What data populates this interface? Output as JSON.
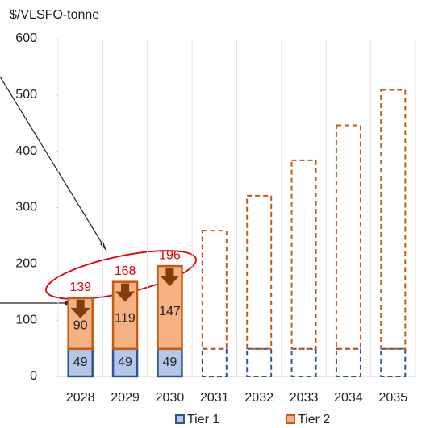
{
  "chart_data": {
    "type": "stacked_bar",
    "y_axis_label": "$/VLSFO-tonne",
    "categories": [
      "2028",
      "2029",
      "2030",
      "2031",
      "2032",
      "2033",
      "2034",
      "2035"
    ],
    "series": [
      {
        "name": "Tier 1",
        "color": "#b4c7e7",
        "edge": "#2f5597",
        "values": [
          49,
          49,
          49,
          49,
          49,
          49,
          49,
          49
        ],
        "value_labels": [
          "49",
          "49",
          "49",
          null,
          null,
          null,
          null,
          null
        ],
        "styles": [
          "solid",
          "solid",
          "solid",
          "dashed",
          "dashed",
          "dashed",
          "dashed",
          "dashed"
        ]
      },
      {
        "name": "Tier 2",
        "color": "#f4b183",
        "edge": "#c55a11",
        "values": [
          90,
          119,
          147,
          210,
          272,
          335,
          397,
          460
        ],
        "value_labels": [
          "90",
          "119",
          "147",
          null,
          null,
          null,
          null,
          null
        ],
        "styles": [
          "solid",
          "solid",
          "solid",
          "dashed",
          "dashed",
          "dashed",
          "dashed",
          "dashed"
        ]
      }
    ],
    "total_labels": [
      "139",
      "168",
      "196",
      null,
      null,
      null,
      null,
      null
    ],
    "total_label_color": "#e00000",
    "ylim": [
      0,
      600
    ],
    "yticks": [
      0,
      100,
      200,
      300,
      400,
      500,
      600
    ]
  }
}
